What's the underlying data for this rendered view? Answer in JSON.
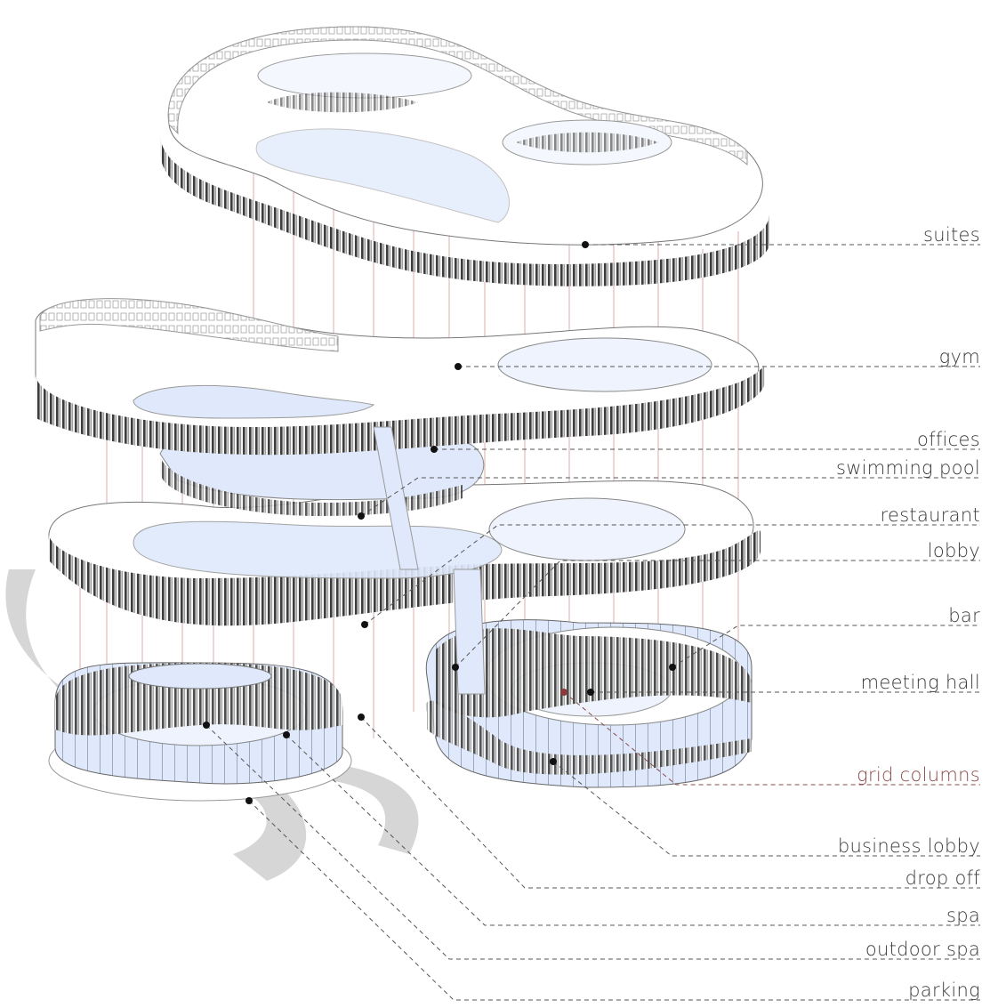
{
  "labels": [
    {
      "id": "suites",
      "text": "suites"
    },
    {
      "id": "gym",
      "text": "gym"
    },
    {
      "id": "offices",
      "text": "offices"
    },
    {
      "id": "swimming-pool",
      "text": "swimming pool"
    },
    {
      "id": "restaurant",
      "text": "restaurant"
    },
    {
      "id": "lobby",
      "text": "lobby"
    },
    {
      "id": "bar",
      "text": "bar"
    },
    {
      "id": "meeting-hall",
      "text": "meeting hall"
    },
    {
      "id": "grid-columns",
      "text": "grid columns",
      "accent": true
    },
    {
      "id": "business-lobby",
      "text": "business lobby"
    },
    {
      "id": "drop-off",
      "text": "drop off"
    },
    {
      "id": "spa",
      "text": "spa"
    },
    {
      "id": "outdoor-spa",
      "text": "outdoor spa"
    },
    {
      "id": "parking",
      "text": "parking"
    }
  ],
  "colors": {
    "glass": "#dde8fb",
    "frame": "#4a4a4a",
    "column": "#c98080",
    "ground": "#d3d3d3",
    "accent": "#8b4a4a"
  }
}
